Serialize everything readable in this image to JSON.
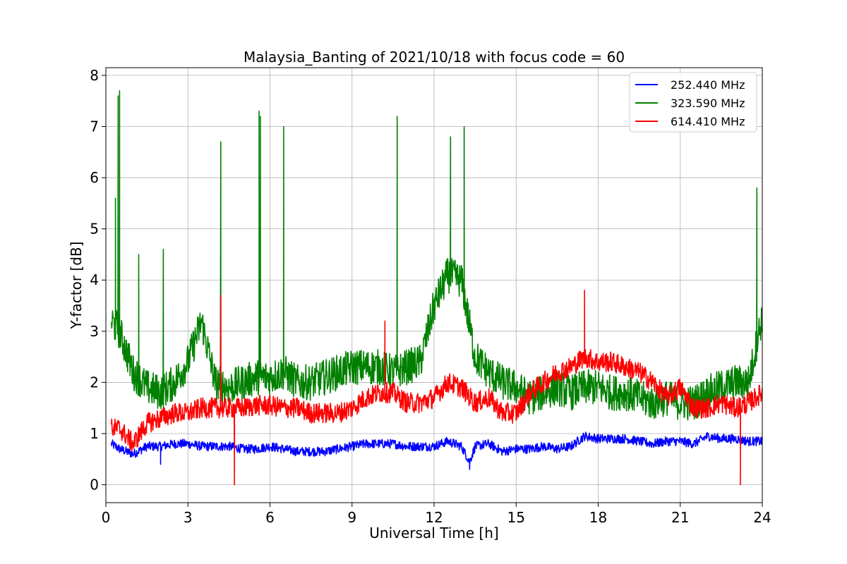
{
  "chart_data": {
    "type": "line",
    "title": "Malaysia_Banting of 2021/10/18 with focus code = 60",
    "xlabel": "Universal Time [h]",
    "ylabel": "Y-factor [dB]",
    "xlim": [
      0,
      24
    ],
    "ylim": [
      -0.35,
      8.15
    ],
    "xticks": [
      0,
      3,
      6,
      9,
      12,
      15,
      18,
      21,
      24
    ],
    "xtick_labels": [
      "0",
      "3",
      "6",
      "9",
      "12",
      "15",
      "18",
      "21",
      "24"
    ],
    "yticks": [
      0,
      1,
      2,
      3,
      4,
      5,
      6,
      7,
      8
    ],
    "ytick_labels": [
      "0",
      "1",
      "2",
      "3",
      "4",
      "5",
      "6",
      "7",
      "8"
    ],
    "grid": true,
    "legend_position": "top-right",
    "series": [
      {
        "name": "252.440 MHz",
        "color": "#0000ff",
        "x": [
          0.2,
          0.5,
          1.0,
          1.5,
          2.0,
          2.5,
          3.0,
          3.5,
          4.0,
          4.5,
          5.0,
          5.5,
          6.0,
          6.5,
          7.0,
          7.5,
          8.0,
          8.5,
          9.0,
          9.5,
          10.0,
          10.5,
          11.0,
          11.5,
          12.0,
          12.5,
          13.0,
          13.3,
          13.5,
          14.0,
          14.5,
          15.0,
          15.5,
          16.0,
          16.5,
          17.0,
          17.5,
          18.0,
          18.5,
          19.0,
          19.5,
          20.0,
          20.5,
          21.0,
          21.5,
          22.0,
          22.5,
          23.0,
          23.5,
          24.0
        ],
        "values": [
          0.8,
          0.7,
          0.6,
          0.75,
          0.75,
          0.8,
          0.8,
          0.75,
          0.75,
          0.75,
          0.7,
          0.7,
          0.75,
          0.7,
          0.65,
          0.65,
          0.65,
          0.7,
          0.75,
          0.8,
          0.8,
          0.8,
          0.75,
          0.75,
          0.75,
          0.85,
          0.75,
          0.45,
          0.75,
          0.8,
          0.65,
          0.7,
          0.7,
          0.75,
          0.7,
          0.75,
          0.95,
          0.9,
          0.9,
          0.9,
          0.85,
          0.8,
          0.85,
          0.85,
          0.8,
          0.95,
          0.9,
          0.9,
          0.85,
          0.85
        ]
      },
      {
        "name": "323.590 MHz",
        "color": "#008000",
        "x": [
          0.2,
          0.5,
          1.0,
          1.5,
          2.0,
          2.5,
          3.0,
          3.5,
          4.0,
          4.5,
          5.0,
          5.5,
          6.0,
          6.5,
          7.0,
          7.5,
          8.0,
          8.5,
          9.0,
          9.5,
          10.0,
          10.5,
          11.0,
          11.5,
          12.0,
          12.5,
          13.0,
          13.5,
          14.0,
          14.5,
          15.0,
          15.5,
          16.0,
          16.5,
          17.0,
          17.5,
          18.0,
          18.5,
          19.0,
          19.5,
          20.0,
          20.5,
          21.0,
          21.5,
          22.0,
          22.5,
          23.0,
          23.5,
          24.0
        ],
        "values": [
          3.2,
          3.0,
          2.2,
          1.9,
          1.8,
          2.0,
          2.4,
          3.2,
          2.0,
          1.9,
          2.0,
          2.1,
          2.1,
          2.2,
          2.0,
          2.0,
          2.1,
          2.2,
          2.3,
          2.3,
          2.3,
          2.2,
          2.3,
          2.4,
          3.5,
          4.1,
          4.0,
          2.5,
          2.2,
          2.0,
          1.9,
          1.7,
          1.8,
          1.9,
          1.8,
          1.9,
          1.9,
          1.8,
          1.8,
          1.7,
          1.6,
          1.7,
          1.6,
          1.6,
          1.8,
          1.9,
          2.0,
          2.0,
          3.3
        ]
      },
      {
        "name": "614.410 MHz",
        "color": "#ff0000",
        "x": [
          0.2,
          0.5,
          1.0,
          1.5,
          2.0,
          2.5,
          3.0,
          3.5,
          4.0,
          4.5,
          5.0,
          5.5,
          6.0,
          6.5,
          7.0,
          7.5,
          8.0,
          8.5,
          9.0,
          9.5,
          10.0,
          10.5,
          11.0,
          11.5,
          12.0,
          12.5,
          13.0,
          13.5,
          14.0,
          14.5,
          15.0,
          15.5,
          16.0,
          16.5,
          17.0,
          17.5,
          18.0,
          18.5,
          19.0,
          19.5,
          20.0,
          20.5,
          21.0,
          21.5,
          22.0,
          22.5,
          23.0,
          23.5,
          24.0
        ],
        "values": [
          1.1,
          1.1,
          0.8,
          1.2,
          1.3,
          1.4,
          1.4,
          1.5,
          1.5,
          1.5,
          1.5,
          1.55,
          1.55,
          1.5,
          1.5,
          1.4,
          1.4,
          1.4,
          1.5,
          1.7,
          1.8,
          1.8,
          1.6,
          1.6,
          1.7,
          2.0,
          1.9,
          1.6,
          1.7,
          1.4,
          1.4,
          1.8,
          2.0,
          2.2,
          2.3,
          2.5,
          2.4,
          2.4,
          2.3,
          2.2,
          2.0,
          1.7,
          1.9,
          1.5,
          1.5,
          1.6,
          1.5,
          1.6,
          1.8
        ]
      }
    ],
    "annotations_spikes": {
      "323.590 MHz": [
        [
          0.35,
          5.6
        ],
        [
          0.45,
          7.6
        ],
        [
          0.5,
          7.7
        ],
        [
          1.2,
          4.5
        ],
        [
          2.1,
          4.6
        ],
        [
          4.2,
          6.7
        ],
        [
          5.6,
          7.3
        ],
        [
          5.65,
          7.2
        ],
        [
          6.5,
          7.0
        ],
        [
          10.65,
          7.2
        ],
        [
          12.6,
          6.8
        ],
        [
          13.1,
          7.0
        ],
        [
          23.8,
          5.8
        ]
      ],
      "614.410 MHz": [
        [
          4.2,
          3.7
        ],
        [
          4.7,
          0.0
        ],
        [
          10.2,
          3.2
        ],
        [
          17.5,
          3.8
        ],
        [
          23.2,
          0.0
        ]
      ],
      "252.440 MHz": [
        [
          2.0,
          0.4
        ],
        [
          13.3,
          0.3
        ]
      ]
    }
  }
}
